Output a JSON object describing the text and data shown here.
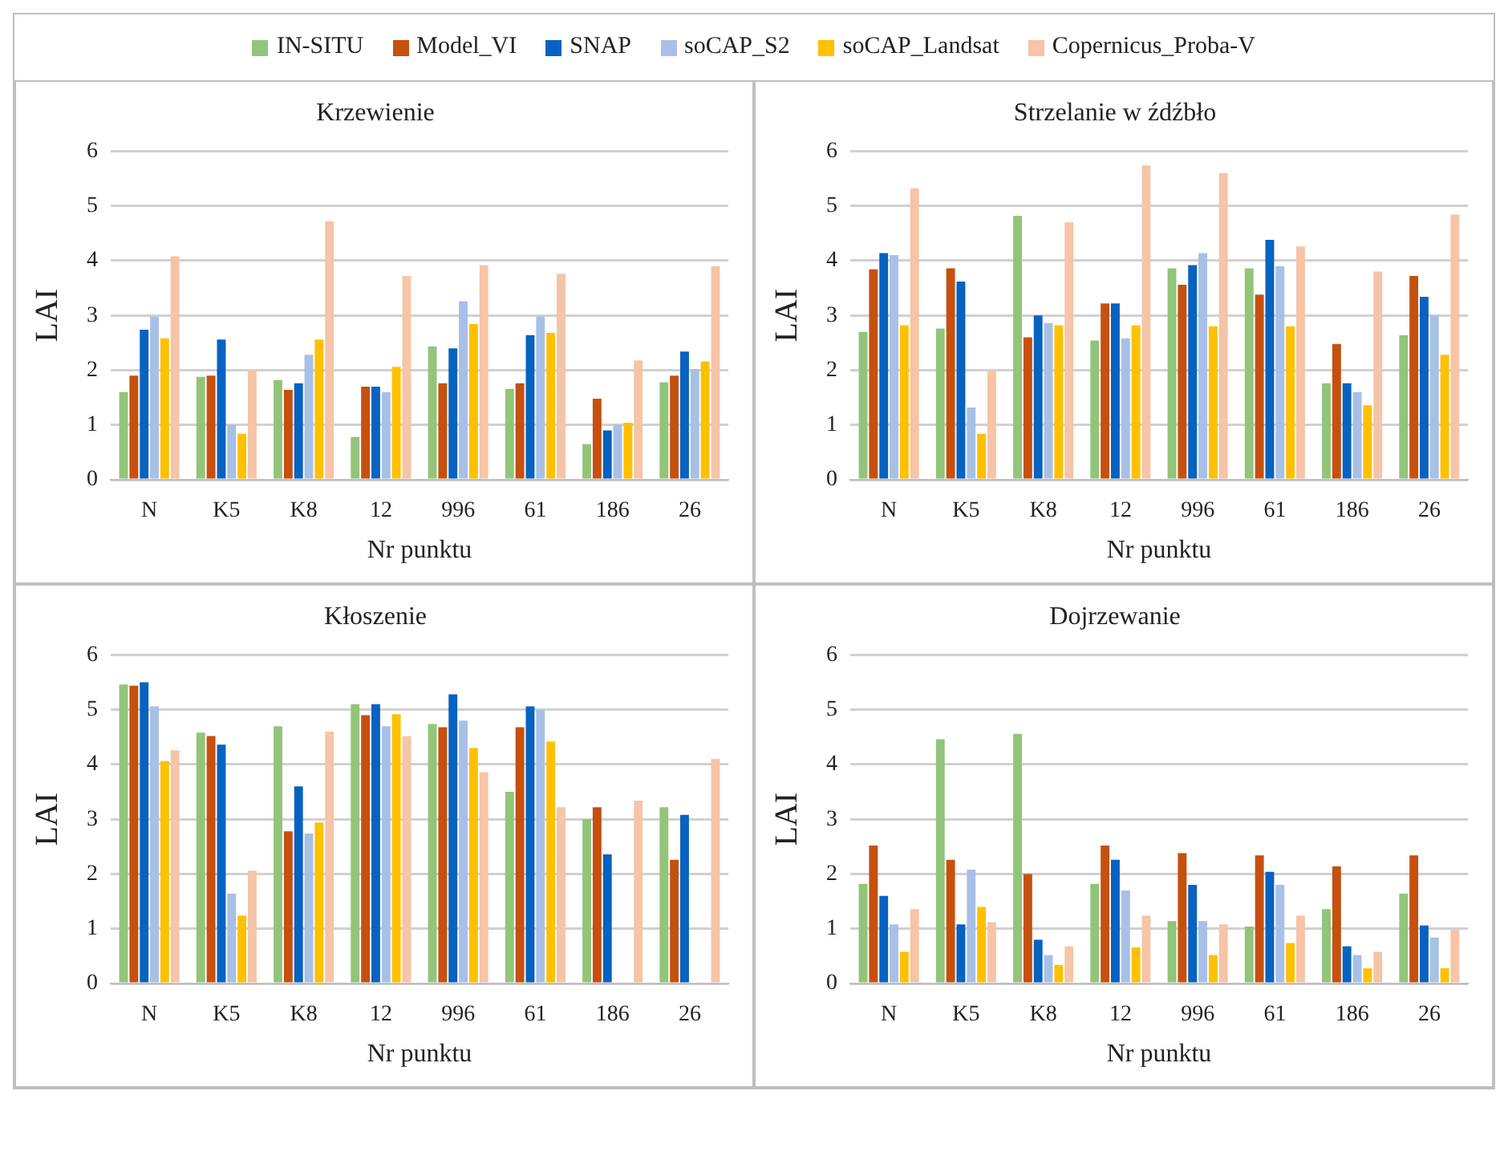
{
  "chart_data": [
    {
      "type": "bar",
      "title": "Krzewienie",
      "xlabel": "Nr punktu",
      "ylabel": "LAI",
      "legend": "top",
      "grid": "y",
      "ylim": [
        0,
        6
      ],
      "yticks": [
        0,
        1,
        2,
        3,
        4,
        5,
        6
      ],
      "categories": [
        "N",
        "K5",
        "K8",
        "12",
        "996",
        "61",
        "186",
        "26"
      ],
      "series": [
        {
          "name": "IN-SITU",
          "color": "#92c47a",
          "values": [
            1.6,
            1.88,
            1.82,
            0.78,
            2.43,
            1.66,
            0.65,
            1.78
          ]
        },
        {
          "name": "Model_VI",
          "color": "#c5500f",
          "values": [
            1.9,
            1.9,
            1.64,
            1.7,
            1.76,
            1.76,
            1.48,
            1.9
          ]
        },
        {
          "name": "SNAP",
          "color": "#0762c1",
          "values": [
            2.74,
            2.56,
            1.76,
            1.7,
            2.4,
            2.64,
            0.9,
            2.34
          ]
        },
        {
          "name": "soCAP_S2",
          "color": "#a8c0e6",
          "values": [
            2.98,
            1.0,
            2.28,
            1.6,
            3.26,
            2.98,
            1.0,
            2.02
          ]
        },
        {
          "name": "soCAP_Landsat",
          "color": "#ffc000",
          "values": [
            2.58,
            0.84,
            2.56,
            2.06,
            2.84,
            2.68,
            1.04,
            2.16
          ]
        },
        {
          "name": "Copernicus_Proba-V",
          "color": "#f6c4a6",
          "values": [
            4.08,
            2.0,
            4.72,
            3.72,
            3.92,
            3.76,
            2.18,
            3.9
          ]
        }
      ]
    },
    {
      "type": "bar",
      "title": "Strzelanie w źdźbło",
      "xlabel": "Nr punktu",
      "ylabel": "LAI",
      "grid": "y",
      "ylim": [
        0,
        6
      ],
      "yticks": [
        0,
        1,
        2,
        3,
        4,
        5,
        6
      ],
      "categories": [
        "N",
        "K5",
        "K8",
        "12",
        "996",
        "61",
        "186",
        "26"
      ],
      "series": [
        {
          "color": "#92c47a",
          "values": [
            2.7,
            2.76,
            4.82,
            2.54,
            3.86,
            3.86,
            1.76,
            2.64
          ]
        },
        {
          "color": "#c5500f",
          "values": [
            3.84,
            3.86,
            2.6,
            3.22,
            3.56,
            3.38,
            2.48,
            3.72
          ]
        },
        {
          "color": "#0762c1",
          "values": [
            4.14,
            3.62,
            3.0,
            3.22,
            3.92,
            4.38,
            1.76,
            3.34
          ]
        },
        {
          "color": "#a8c0e6",
          "values": [
            4.1,
            1.32,
            2.86,
            2.58,
            4.14,
            3.9,
            1.6,
            3.0
          ]
        },
        {
          "color": "#ffc000",
          "values": [
            2.82,
            0.84,
            2.82,
            2.82,
            2.8,
            2.8,
            1.36,
            2.28
          ]
        },
        {
          "color": "#f6c4a6",
          "values": [
            5.32,
            2.0,
            4.7,
            5.74,
            5.6,
            4.26,
            3.8,
            4.84
          ]
        }
      ]
    },
    {
      "type": "bar",
      "title": "Kłoszenie",
      "xlabel": "Nr punktu",
      "ylabel": "LAI",
      "grid": "y",
      "ylim": [
        0,
        6
      ],
      "yticks": [
        0,
        1,
        2,
        3,
        4,
        5,
        6
      ],
      "categories": [
        "N",
        "K5",
        "K8",
        "12",
        "996",
        "61",
        "186",
        "26"
      ],
      "series": [
        {
          "color": "#92c47a",
          "values": [
            5.46,
            4.58,
            4.7,
            5.1,
            4.74,
            3.5,
            3.0,
            3.22
          ]
        },
        {
          "color": "#c5500f",
          "values": [
            5.44,
            4.52,
            2.78,
            4.9,
            4.68,
            4.68,
            3.22,
            2.26
          ]
        },
        {
          "color": "#0762c1",
          "values": [
            5.5,
            4.36,
            3.6,
            5.1,
            5.28,
            5.06,
            2.36,
            3.08
          ]
        },
        {
          "color": "#a8c0e6",
          "values": [
            5.06,
            1.64,
            2.74,
            4.7,
            4.8,
            5.0,
            null,
            null
          ]
        },
        {
          "color": "#ffc000",
          "values": [
            4.06,
            1.24,
            2.94,
            4.92,
            4.3,
            4.42,
            null,
            null
          ]
        },
        {
          "color": "#f6c4a6",
          "values": [
            4.26,
            2.06,
            4.6,
            4.52,
            3.86,
            3.22,
            3.34,
            4.1
          ]
        }
      ]
    },
    {
      "type": "bar",
      "title": "Dojrzewanie",
      "xlabel": "Nr punktu",
      "ylabel": "LAI",
      "grid": "y",
      "ylim": [
        0,
        6
      ],
      "yticks": [
        0,
        1,
        2,
        3,
        4,
        5,
        6
      ],
      "categories": [
        "N",
        "K5",
        "K8",
        "12",
        "996",
        "61",
        "186",
        "26"
      ],
      "series": [
        {
          "color": "#92c47a",
          "values": [
            1.82,
            4.46,
            4.56,
            1.82,
            1.14,
            1.04,
            1.36,
            1.64
          ]
        },
        {
          "color": "#c5500f",
          "values": [
            2.52,
            2.26,
            2.0,
            2.52,
            2.38,
            2.34,
            2.14,
            2.34
          ]
        },
        {
          "color": "#0762c1",
          "values": [
            1.6,
            1.08,
            0.8,
            2.26,
            1.8,
            2.04,
            0.68,
            1.06
          ]
        },
        {
          "color": "#a8c0e6",
          "values": [
            1.08,
            2.08,
            0.52,
            1.7,
            1.14,
            1.8,
            0.52,
            0.84
          ]
        },
        {
          "color": "#ffc000",
          "values": [
            0.58,
            1.4,
            0.34,
            0.66,
            0.52,
            0.74,
            0.28,
            0.28
          ]
        },
        {
          "color": "#f6c4a6",
          "values": [
            1.36,
            1.12,
            0.68,
            1.24,
            1.08,
            1.24,
            0.58,
            0.98
          ]
        }
      ]
    }
  ]
}
